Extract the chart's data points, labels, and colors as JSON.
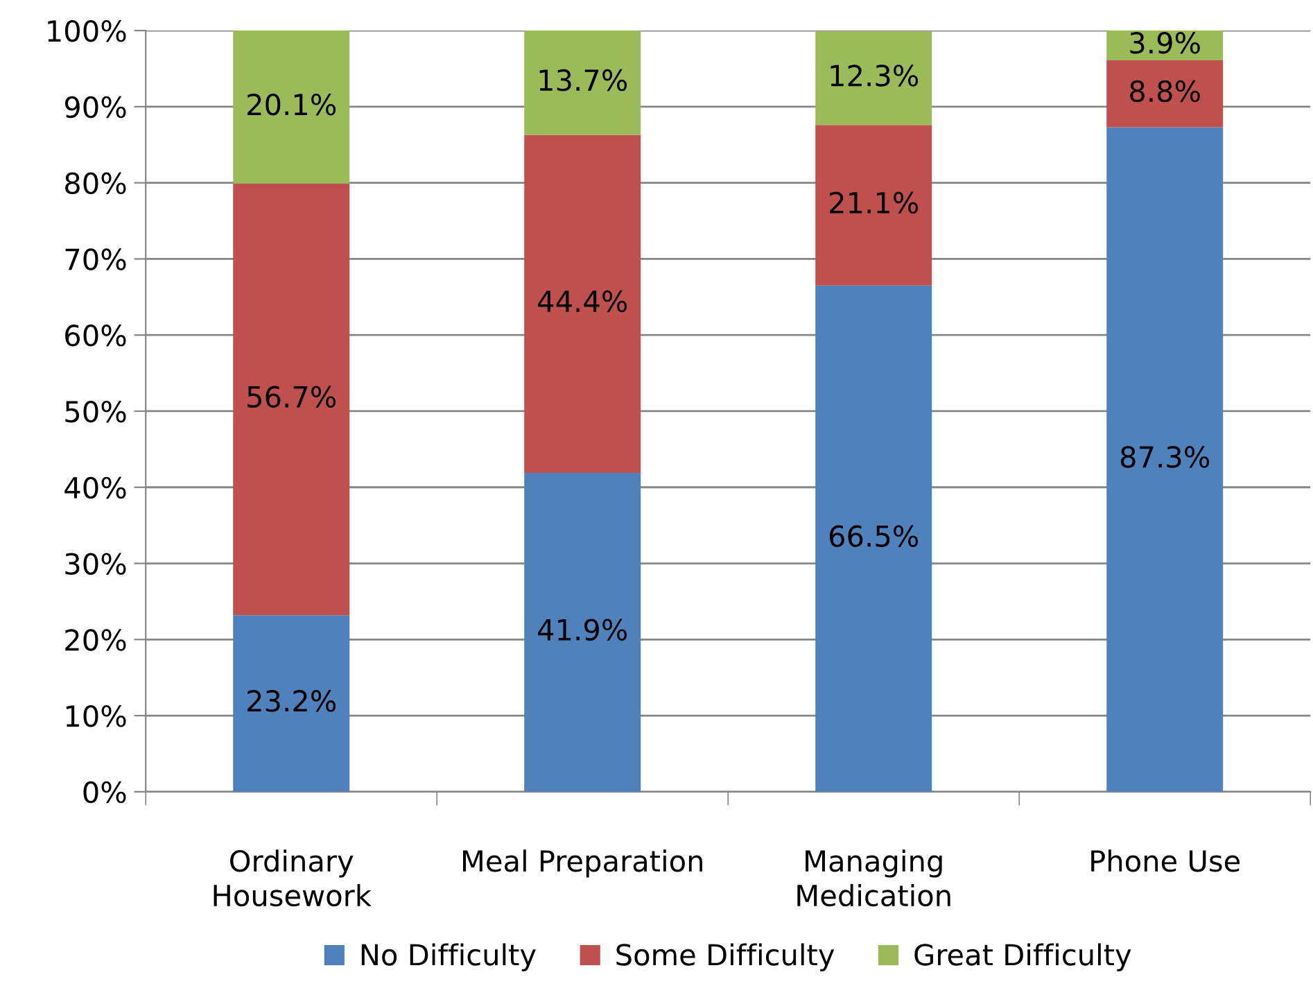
{
  "chart_data": {
    "type": "bar",
    "stacked": true,
    "categories": [
      "Ordinary\nHousework",
      "Meal Preparation",
      "Managing\nMedication",
      "Phone Use"
    ],
    "series": [
      {
        "name": "No Difficulty",
        "color": "#4f81bd",
        "values": [
          23.2,
          41.9,
          66.5,
          87.3
        ],
        "value_labels": [
          "23.2%",
          "41.9%",
          "66.5%",
          "87.3%"
        ]
      },
      {
        "name": "Some Difficulty",
        "color": "#c0504d",
        "values": [
          56.7,
          44.4,
          21.1,
          8.8
        ],
        "value_labels": [
          "56.7%",
          "44.4%",
          "21.1%",
          "8.8%"
        ]
      },
      {
        "name": "Great Difficulty",
        "color": "#9bbb59",
        "values": [
          20.1,
          13.7,
          12.3,
          3.9
        ],
        "value_labels": [
          "20.1%",
          "13.7%",
          "12.3%",
          "3.9%"
        ]
      }
    ],
    "ylim": [
      0,
      100
    ],
    "yticks": [
      {
        "value": 0,
        "label": "0%"
      },
      {
        "value": 10,
        "label": "10%"
      },
      {
        "value": 20,
        "label": "20%"
      },
      {
        "value": 30,
        "label": "30%"
      },
      {
        "value": 40,
        "label": "40%"
      },
      {
        "value": 50,
        "label": "50%"
      },
      {
        "value": 60,
        "label": "60%"
      },
      {
        "value": 70,
        "label": "70%"
      },
      {
        "value": 80,
        "label": "80%"
      },
      {
        "value": 90,
        "label": "90%"
      },
      {
        "value": 100,
        "label": "100%"
      }
    ],
    "grid": "y",
    "legend": "bottom"
  }
}
